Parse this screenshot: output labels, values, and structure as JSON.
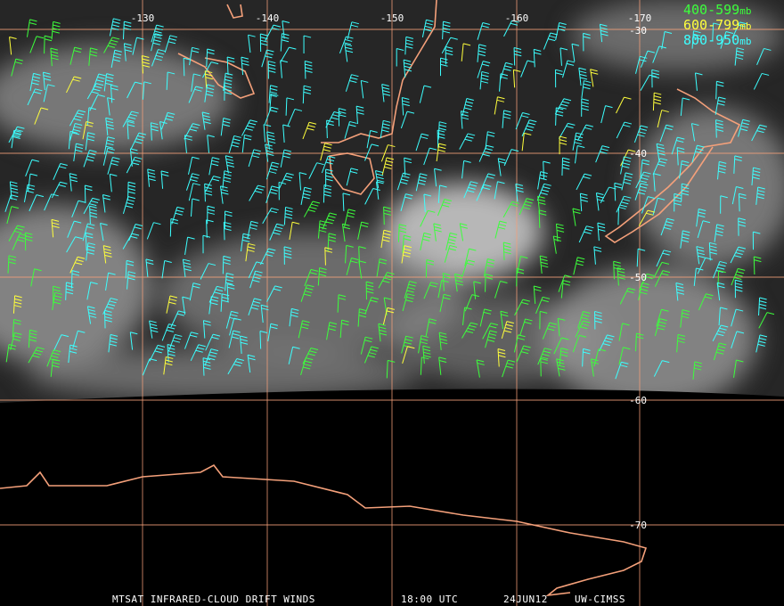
{
  "map": {
    "lon_labels": [
      "-130",
      "-140",
      "-150",
      "-160",
      "-170"
    ],
    "lat_labels": [
      "-30",
      "-40",
      "-50",
      "-60",
      "-70"
    ],
    "legend": [
      {
        "label": "400-599",
        "unit": "mb",
        "color": "#3cff3c"
      },
      {
        "label": "600-799",
        "unit": "mb",
        "color": "#ffff3c"
      },
      {
        "label": "800-950",
        "unit": "mb",
        "color": "#3cffff"
      }
    ],
    "footer": {
      "product": "MTSAT INFRARED-CLOUD DRIFT WINDS",
      "time": "18:00 UTC",
      "date": "24JUN12",
      "source": "UW-CIMSS"
    }
  }
}
